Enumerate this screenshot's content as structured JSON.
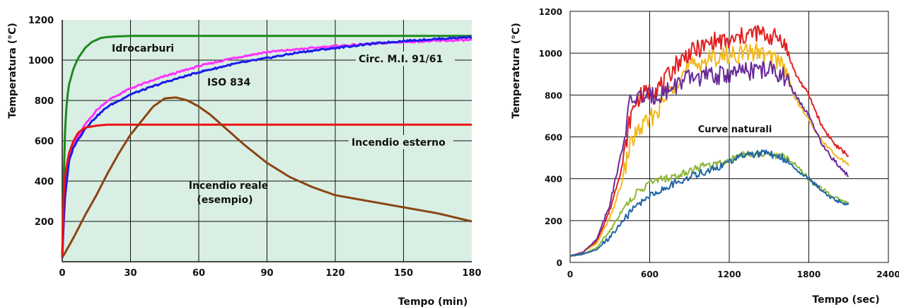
{
  "chart_data": [
    {
      "type": "line",
      "xlabel": "Tempo (min)",
      "ylabel": "Temperatura (°C)",
      "xlim": [
        0,
        180
      ],
      "ylim": [
        0,
        1200
      ],
      "x_ticks": [
        "0",
        "30",
        "60",
        "90",
        "120",
        "150",
        "180"
      ],
      "y_ticks": [
        "200",
        "400",
        "600",
        "800",
        "1000",
        "1200"
      ],
      "grid": true,
      "background": "#d9efe3",
      "annotations": [
        "Idrocarburi",
        "Circ. M.I. 91/61",
        "ISO 834",
        "Incendio esterno",
        "Incendio reale",
        "(esempio)"
      ],
      "series": [
        {
          "name": "Idrocarburi",
          "color": "#1e8a1e",
          "x": [
            0,
            1,
            2,
            3,
            5,
            7,
            10,
            13,
            17,
            20,
            25,
            30,
            60,
            90,
            120,
            150,
            180
          ],
          "y": [
            20,
            600,
            800,
            880,
            960,
            1010,
            1060,
            1090,
            1110,
            1115,
            1118,
            1120,
            1120,
            1120,
            1120,
            1120,
            1120
          ]
        },
        {
          "name": "Circ. M.I. 91/61",
          "color": "#ff33ff",
          "x": [
            0,
            1,
            3,
            5,
            10,
            15,
            20,
            30,
            45,
            60,
            75,
            90,
            105,
            120,
            135,
            150,
            165,
            180
          ],
          "y": [
            20,
            300,
            500,
            580,
            680,
            750,
            800,
            860,
            920,
            970,
            1010,
            1040,
            1055,
            1070,
            1080,
            1090,
            1095,
            1100
          ]
        },
        {
          "name": "ISO 834",
          "color": "#1a1aee",
          "x": [
            0,
            1,
            3,
            5,
            10,
            15,
            20,
            30,
            45,
            60,
            75,
            90,
            105,
            120,
            135,
            150,
            165,
            180
          ],
          "y": [
            20,
            300,
            500,
            570,
            660,
            720,
            770,
            830,
            890,
            940,
            980,
            1010,
            1040,
            1060,
            1080,
            1095,
            1105,
            1115
          ]
        },
        {
          "name": "Incendio esterno",
          "color": "#ee1111",
          "x": [
            0,
            0.5,
            1,
            2,
            3,
            5,
            7,
            10,
            15,
            20,
            60,
            120,
            180
          ],
          "y": [
            20,
            300,
            400,
            480,
            540,
            600,
            640,
            665,
            675,
            680,
            680,
            680,
            680
          ]
        },
        {
          "name": "Incendio reale (esempio)",
          "color": "#8b4513",
          "x": [
            0,
            5,
            10,
            15,
            20,
            25,
            30,
            35,
            40,
            45,
            50,
            55,
            60,
            65,
            70,
            80,
            90,
            100,
            110,
            120,
            135,
            150,
            165,
            180
          ],
          "y": [
            20,
            120,
            230,
            330,
            440,
            540,
            630,
            700,
            770,
            810,
            815,
            800,
            770,
            730,
            680,
            580,
            490,
            420,
            370,
            330,
            300,
            270,
            240,
            200
          ]
        }
      ]
    },
    {
      "type": "line",
      "xlabel": "Tempo (sec)",
      "ylabel": "Temperatura (°C)",
      "xlim": [
        0,
        2400
      ],
      "ylim": [
        0,
        1200
      ],
      "x_ticks": [
        "0",
        "600",
        "1200",
        "1800",
        "2400"
      ],
      "y_ticks": [
        "0",
        "200",
        "400",
        "600",
        "800",
        "1000",
        "1200"
      ],
      "grid": true,
      "annotations": [
        "Curve naturali"
      ],
      "series": [
        {
          "name": "red",
          "color": "#e02020",
          "x": [
            0,
            100,
            200,
            300,
            400,
            450,
            500,
            550,
            600,
            700,
            800,
            900,
            1000,
            1100,
            1200,
            1300,
            1400,
            1500,
            1600,
            1700,
            1800,
            1900,
            2000,
            2100
          ],
          "y": [
            30,
            50,
            100,
            250,
            480,
            680,
            780,
            800,
            820,
            850,
            950,
            1000,
            1030,
            1060,
            1050,
            1080,
            1100,
            1080,
            1070,
            900,
            800,
            650,
            560,
            510
          ]
        },
        {
          "name": "orange",
          "color": "#f2b91e",
          "x": [
            0,
            100,
            200,
            300,
            400,
            450,
            500,
            550,
            600,
            700,
            800,
            900,
            1000,
            1100,
            1200,
            1300,
            1400,
            1500,
            1600,
            1700,
            1800,
            1900,
            2000,
            2100
          ],
          "y": [
            30,
            50,
            90,
            210,
            400,
            560,
            620,
            650,
            680,
            760,
            870,
            930,
            960,
            980,
            990,
            1000,
            1010,
            980,
            960,
            780,
            680,
            580,
            510,
            470
          ]
        },
        {
          "name": "purple",
          "color": "#6a2b9a",
          "x": [
            0,
            100,
            200,
            300,
            400,
            450,
            500,
            550,
            600,
            700,
            800,
            900,
            1000,
            1100,
            1200,
            1300,
            1400,
            1500,
            1600,
            1700,
            1800,
            1900,
            2000,
            2100
          ],
          "y": [
            30,
            50,
            110,
            280,
            560,
            760,
            790,
            790,
            790,
            810,
            850,
            880,
            890,
            890,
            900,
            910,
            920,
            920,
            900,
            800,
            700,
            560,
            480,
            410
          ]
        },
        {
          "name": "light green",
          "color": "#8fb73a",
          "x": [
            0,
            100,
            200,
            300,
            400,
            500,
            600,
            700,
            800,
            900,
            1000,
            1100,
            1200,
            1300,
            1400,
            1500,
            1600,
            1700,
            1800,
            1900,
            2000,
            2100
          ],
          "y": [
            30,
            40,
            70,
            150,
            260,
            330,
            380,
            400,
            410,
            440,
            460,
            470,
            490,
            520,
            520,
            515,
            510,
            470,
            400,
            350,
            310,
            280
          ]
        },
        {
          "name": "blue",
          "color": "#1f64a8",
          "x": [
            0,
            100,
            200,
            300,
            400,
            500,
            600,
            700,
            800,
            900,
            1000,
            1100,
            1200,
            1300,
            1400,
            1500,
            1600,
            1700,
            1800,
            1900,
            2000,
            2100
          ],
          "y": [
            30,
            40,
            60,
            120,
            200,
            270,
            320,
            350,
            380,
            410,
            430,
            450,
            480,
            510,
            520,
            520,
            500,
            450,
            400,
            340,
            300,
            275
          ]
        }
      ]
    }
  ]
}
